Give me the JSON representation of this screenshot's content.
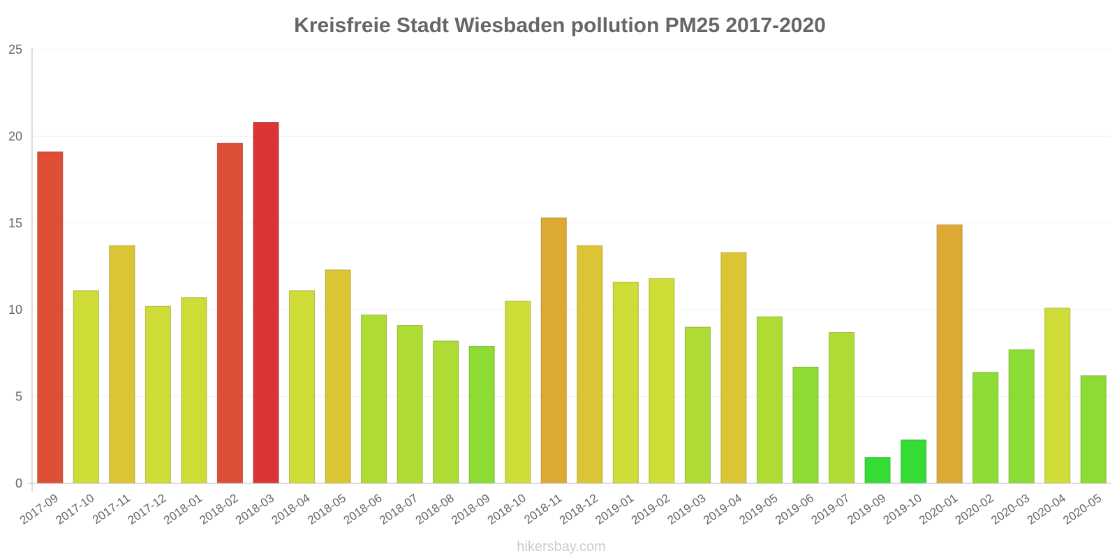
{
  "chart_data": {
    "type": "bar",
    "title": "Kreisfreie Stadt Wiesbaden pollution PM25 2017-2020",
    "xlabel": "",
    "ylabel": "",
    "ylim": [
      0,
      25
    ],
    "yticks": [
      0,
      5,
      10,
      15,
      20,
      25
    ],
    "grid": true,
    "categories": [
      "2017-09",
      "2017-10",
      "2017-11",
      "2017-12",
      "2018-01",
      "2018-02",
      "2018-03",
      "2018-04",
      "2018-05",
      "2018-06",
      "2018-07",
      "2018-08",
      "2018-09",
      "2018-10",
      "2018-11",
      "2018-12",
      "2019-01",
      "2019-02",
      "2019-03",
      "2019-04",
      "2019-05",
      "2019-06",
      "2019-07",
      "2019-09",
      "2019-10",
      "2020-01",
      "2020-02",
      "2020-03",
      "2020-04",
      "2020-05"
    ],
    "values": [
      19.1,
      11.1,
      13.7,
      10.2,
      10.7,
      19.6,
      20.8,
      11.1,
      12.3,
      9.7,
      9.1,
      8.2,
      7.9,
      10.5,
      15.3,
      13.7,
      11.6,
      11.8,
      9.0,
      13.3,
      9.6,
      6.7,
      8.7,
      1.5,
      2.5,
      14.9,
      6.4,
      7.7,
      10.1,
      6.2
    ],
    "colors": [
      "#de5035",
      "#cfdc38",
      "#dcc534",
      "#cfdc38",
      "#cfdc38",
      "#de5035",
      "#dc3535",
      "#cfdc38",
      "#dcc534",
      "#aedc35",
      "#aedc35",
      "#aedc35",
      "#8ddc35",
      "#cfdc38",
      "#dca935",
      "#dcc534",
      "#cfdc38",
      "#cfdc38",
      "#aedc35",
      "#dcc534",
      "#aedc35",
      "#8ddc35",
      "#aedc35",
      "#35dc35",
      "#35dc35",
      "#dca935",
      "#8ddc35",
      "#8ddc35",
      "#cfdc38",
      "#8ddc35"
    ]
  },
  "footer": "hikersbay.com"
}
